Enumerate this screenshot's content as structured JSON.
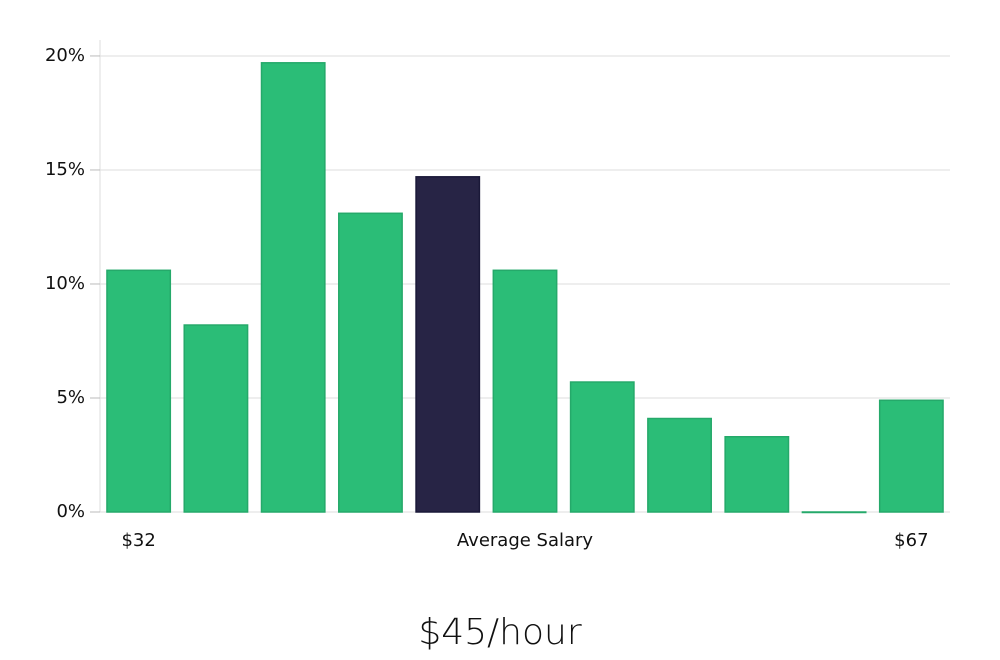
{
  "chart_data": {
    "type": "bar",
    "subtitle": "$45/hour",
    "xlabel": "Average Salary",
    "categories": [
      "$32",
      null,
      null,
      null,
      null,
      null,
      null,
      null,
      null,
      null,
      "$67"
    ],
    "values": [
      10.6,
      8.2,
      19.7,
      13.1,
      14.7,
      10.6,
      5.7,
      4.1,
      3.3,
      0,
      4.9
    ],
    "colors": [
      "#2bbd77",
      "#2bbd77",
      "#2bbd77",
      "#2bbd77",
      "#272445",
      "#2bbd77",
      "#2bbd77",
      "#2bbd77",
      "#2bbd77",
      "#2bbd77",
      "#2bbd77"
    ],
    "ylim": [
      0,
      20.7
    ],
    "yticks": [
      {
        "value": 0,
        "label": "0%"
      },
      {
        "value": 5,
        "label": "5%"
      },
      {
        "value": 10,
        "label": "10%"
      },
      {
        "value": 15,
        "label": "15%"
      },
      {
        "value": 20,
        "label": "20%"
      }
    ],
    "grid": true
  }
}
